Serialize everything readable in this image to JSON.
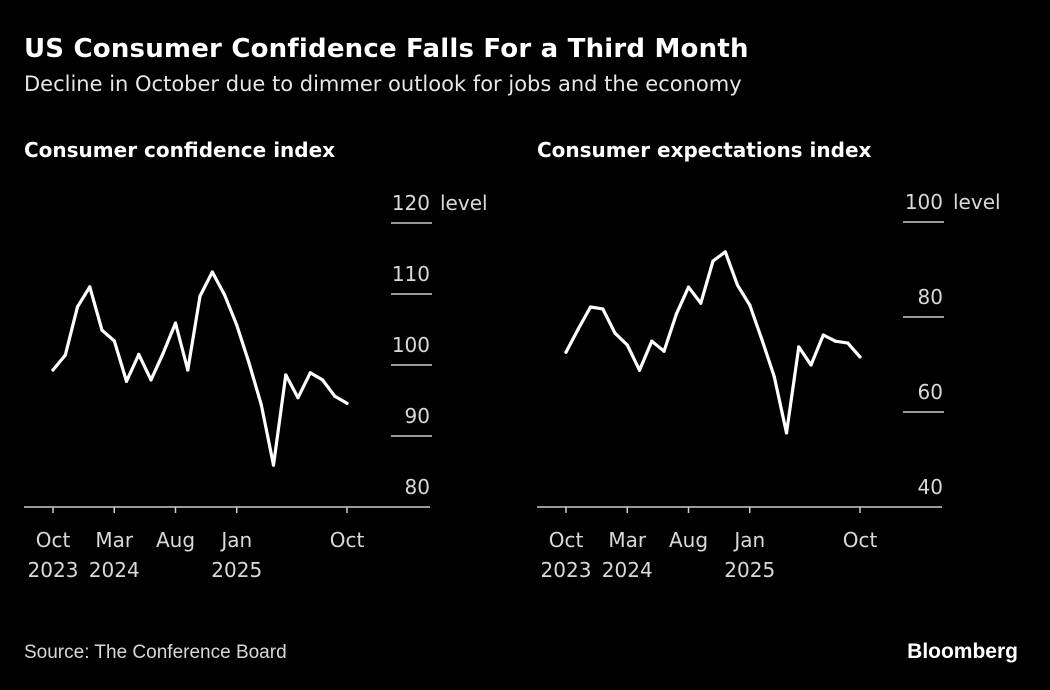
{
  "header": {
    "title": "US Consumer Confidence Falls For a Third Month",
    "subtitle": "Decline in October due to dimmer outlook for jobs and the economy"
  },
  "footer": {
    "source": "Source: The Conference Board",
    "brand": "Bloomberg"
  },
  "colors": {
    "background": "#000000",
    "line": "#ffffff",
    "axis": "#cccccc",
    "text": "#d9d9d9"
  },
  "chart_data": [
    {
      "type": "line",
      "title": "Consumer confidence index",
      "ylabel": "level",
      "ylim": [
        80,
        120
      ],
      "yticks": [
        80,
        90,
        100,
        110,
        120
      ],
      "ytick_labels": [
        "80",
        "90",
        "100",
        "110",
        "120"
      ],
      "unit_label": "level",
      "x_ticks": [
        {
          "index": 0,
          "line1": "Oct",
          "line2": "2023"
        },
        {
          "index": 5,
          "line1": "Mar",
          "line2": "2024"
        },
        {
          "index": 10,
          "line1": "Aug",
          "line2": ""
        },
        {
          "index": 15,
          "line1": "Jan",
          "line2": "2025"
        },
        {
          "index": 24,
          "line1": "Oct",
          "line2": ""
        }
      ],
      "x": [
        "2023-10",
        "2023-11",
        "2023-12",
        "2024-01",
        "2024-02",
        "2024-03",
        "2024-04",
        "2024-05",
        "2024-06",
        "2024-07",
        "2024-08",
        "2024-09",
        "2024-10",
        "2024-11",
        "2024-12",
        "2025-01",
        "2025-02",
        "2025-03",
        "2025-04",
        "2025-05",
        "2025-06",
        "2025-07",
        "2025-08",
        "2025-09",
        "2025-10"
      ],
      "values": [
        99.3,
        101.4,
        108.2,
        111.0,
        104.9,
        103.4,
        97.7,
        101.5,
        97.9,
        101.7,
        105.9,
        99.3,
        109.7,
        113.1,
        109.9,
        105.6,
        100.3,
        94.4,
        85.9,
        98.6,
        95.4,
        98.9,
        97.9,
        95.6,
        94.6
      ],
      "grid": false,
      "legend": "none"
    },
    {
      "type": "line",
      "title": "Consumer expectations index",
      "ylabel": "level",
      "ylim": [
        40,
        100
      ],
      "yticks": [
        40,
        60,
        80,
        100
      ],
      "ytick_labels": [
        "40",
        "60",
        "80",
        "100"
      ],
      "unit_label": "level",
      "x_ticks": [
        {
          "index": 0,
          "line1": "Oct",
          "line2": "2023"
        },
        {
          "index": 5,
          "line1": "Mar",
          "line2": "2024"
        },
        {
          "index": 10,
          "line1": "Aug",
          "line2": ""
        },
        {
          "index": 15,
          "line1": "Jan",
          "line2": "2025"
        },
        {
          "index": 24,
          "line1": "Oct",
          "line2": ""
        }
      ],
      "x": [
        "2023-10",
        "2023-11",
        "2023-12",
        "2024-01",
        "2024-02",
        "2024-03",
        "2024-04",
        "2024-05",
        "2024-06",
        "2024-07",
        "2024-08",
        "2024-09",
        "2024-10",
        "2024-11",
        "2024-12",
        "2025-01",
        "2025-02",
        "2025-03",
        "2025-04",
        "2025-05",
        "2025-06",
        "2025-07",
        "2025-08",
        "2025-09",
        "2025-10"
      ],
      "values": [
        72.6,
        77.5,
        82.1,
        81.7,
        76.6,
        74.1,
        68.8,
        74.9,
        72.8,
        80.6,
        86.3,
        82.9,
        91.8,
        93.7,
        86.7,
        82.5,
        75.2,
        67.4,
        55.6,
        73.7,
        69.9,
        76.2,
        74.9,
        74.5,
        71.6
      ],
      "grid": false,
      "legend": "none"
    }
  ]
}
